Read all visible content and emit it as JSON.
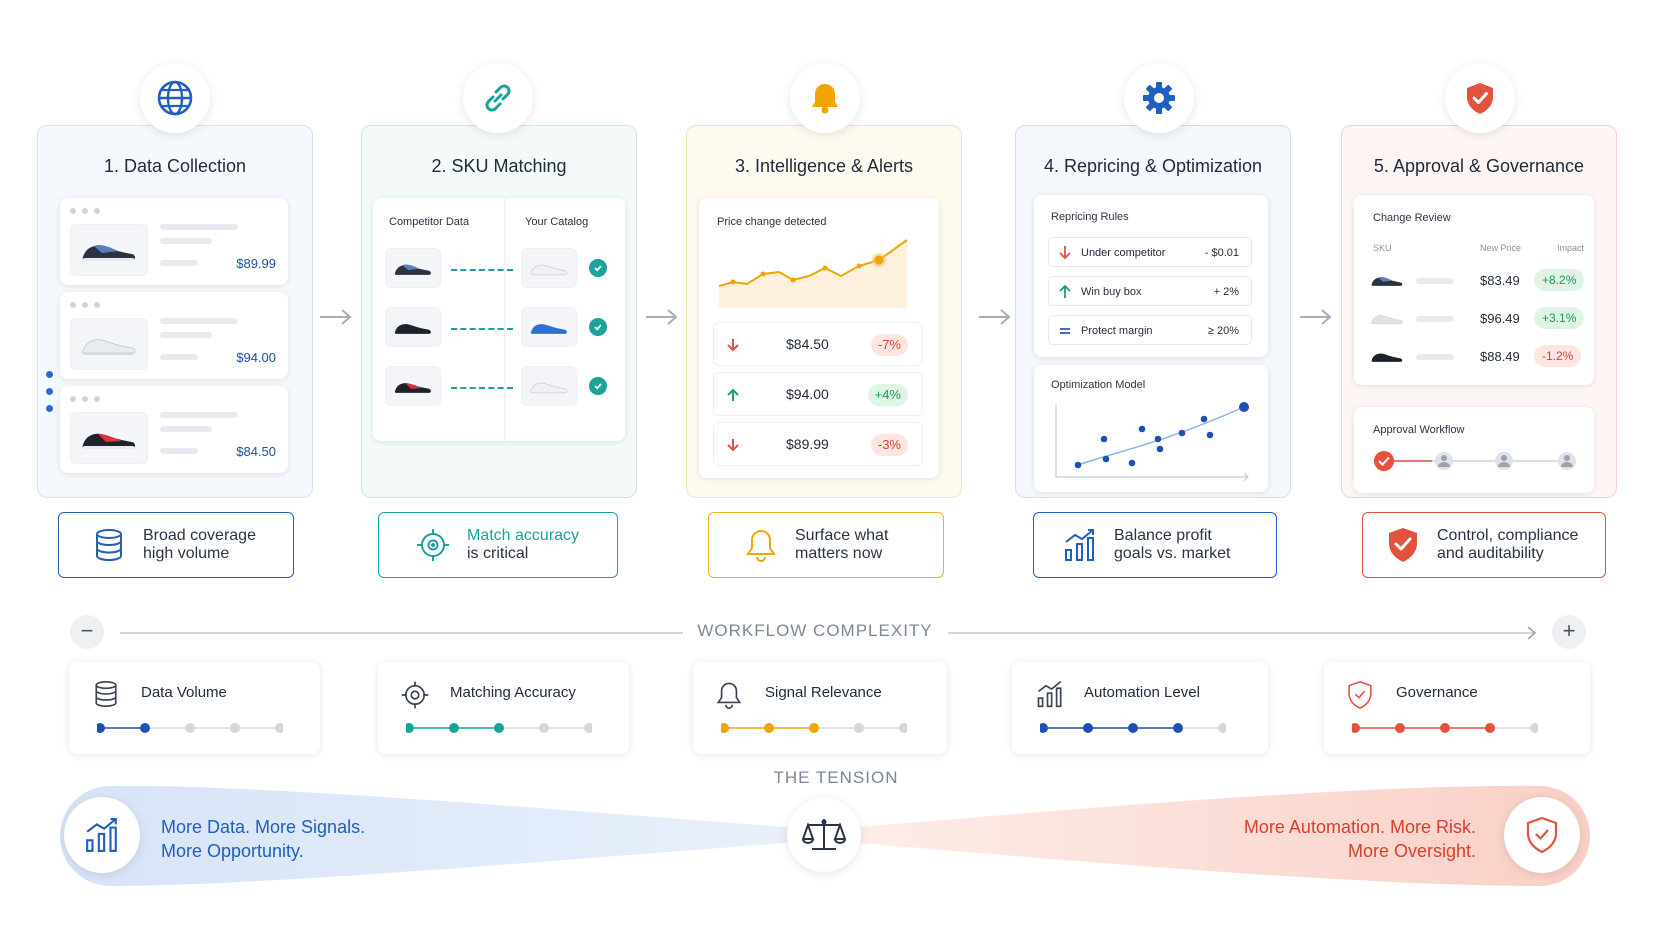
{
  "stages": [
    {
      "title": "1. Data Collection",
      "color": "#2a5fb0",
      "summary_line1": "Broad coverage",
      "summary_line2": "high volume",
      "icon": "globe-icon",
      "summary_icon": "database-icon"
    },
    {
      "title": "2. SKU Matching",
      "color": "#1aa39a",
      "summary_line1": "Match accuracy",
      "summary_line2": "is critical",
      "icon": "link-icon",
      "summary_icon": "target-icon"
    },
    {
      "title": "3. Intelligence & Alerts",
      "color": "#f0a500",
      "summary_line1": "Surface what",
      "summary_line2": "matters now",
      "icon": "bell-icon",
      "summary_icon": "bell-icon"
    },
    {
      "title": "4. Repricing & Optimization",
      "color": "#1f5fbf",
      "summary_line1": "Balance profit",
      "summary_line2": "goals vs. market",
      "icon": "gear-icon",
      "summary_icon": "chart-icon"
    },
    {
      "title": "5. Approval & Governance",
      "color": "#e4513d",
      "summary_line1": "Control, compliance",
      "summary_line2": "and auditability",
      "icon": "shield-icon",
      "summary_icon": "shield-icon"
    }
  ],
  "collection": {
    "prices": [
      "$89.99",
      "$94.00",
      "$84.50"
    ]
  },
  "matching": {
    "col_left": "Competitor Data",
    "col_right": "Your Catalog"
  },
  "alerts": {
    "heading": "Price change detected",
    "rows": [
      {
        "dir": "down",
        "price": "$84.50",
        "change": "-7%"
      },
      {
        "dir": "up",
        "price": "$94.00",
        "change": "+4%"
      },
      {
        "dir": "down",
        "price": "$89.99",
        "change": "-3%"
      }
    ]
  },
  "repricing": {
    "heading": "Repricing Rules",
    "rules": [
      {
        "icon": "arrow-down-icon",
        "label": "Under competitor",
        "value": "- $0.01"
      },
      {
        "icon": "arrow-up-icon",
        "label": "Win buy box",
        "value": "+ 2%"
      },
      {
        "icon": "equals-icon",
        "label": "Protect margin",
        "value": "≥ 20%"
      }
    ],
    "model_heading": "Optimization Model"
  },
  "governance": {
    "heading": "Change Review",
    "cols": [
      "SKU",
      "New Price",
      "Impact"
    ],
    "rows": [
      {
        "price": "$83.49",
        "impact": "+8.2%"
      },
      {
        "price": "$96.49",
        "impact": "+3.1%"
      },
      {
        "price": "$88.49",
        "impact": "-1.2%"
      }
    ],
    "workflow_heading": "Approval Workflow",
    "workflow_steps_done": 1,
    "workflow_steps_total": 4
  },
  "complexity": {
    "label": "WORKFLOW COMPLEXITY",
    "minus": "−",
    "plus": "+"
  },
  "metrics": [
    {
      "label": "Data Volume",
      "level": 2,
      "total": 5,
      "color": "#1f4fb0",
      "icon": "database-icon"
    },
    {
      "label": "Matching Accuracy",
      "level": 3,
      "total": 5,
      "color": "#1aa39a",
      "icon": "target-icon"
    },
    {
      "label": "Signal Relevance",
      "level": 3,
      "total": 5,
      "color": "#f0a500",
      "icon": "bell-icon"
    },
    {
      "label": "Automation Level",
      "level": 4,
      "total": 5,
      "color": "#1f4fb0",
      "icon": "chart-icon"
    },
    {
      "label": "Governance",
      "level": 4,
      "total": 5,
      "color": "#e4513d",
      "icon": "shield-icon"
    }
  ],
  "tension": {
    "label": "THE TENSION",
    "left_line1": "More Data. More Signals.",
    "left_line2": "More Opportunity.",
    "right_line1": "More Automation. More Risk.",
    "right_line2": "More Oversight."
  }
}
